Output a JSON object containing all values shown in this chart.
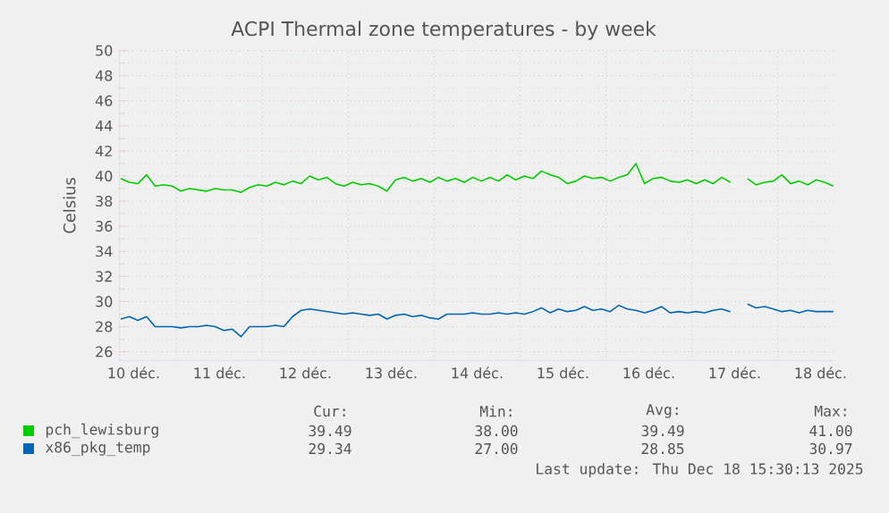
{
  "chart_data": {
    "type": "line",
    "title": "ACPI Thermal zone temperatures - by week",
    "ylabel": "Celsius",
    "x": [
      10.35,
      10.45,
      10.55,
      10.65,
      10.75,
      10.85,
      10.95,
      11.05,
      11.15,
      11.25,
      11.35,
      11.45,
      11.55,
      11.65,
      11.75,
      11.85,
      11.95,
      12.05,
      12.15,
      12.25,
      12.35,
      12.45,
      12.55,
      12.65,
      12.75,
      12.85,
      12.95,
      13.05,
      13.15,
      13.25,
      13.35,
      13.45,
      13.55,
      13.65,
      13.75,
      13.85,
      13.95,
      14.05,
      14.15,
      14.25,
      14.35,
      14.45,
      14.55,
      14.65,
      14.75,
      14.85,
      14.95,
      15.05,
      15.15,
      15.25,
      15.35,
      15.45,
      15.55,
      15.65,
      15.75,
      15.85,
      15.95,
      16.05,
      16.15,
      16.25,
      16.35,
      16.45,
      16.55,
      16.65,
      16.75,
      16.85,
      16.95,
      17.05,
      17.15,
      17.25,
      17.35,
      17.45,
      17.55,
      17.65,
      17.75,
      17.85,
      17.95,
      18.05,
      18.15,
      18.25,
      18.35,
      18.45,
      18.55,
      18.65
    ],
    "series": [
      {
        "name": "pch_lewisburg",
        "color": "#00cc00",
        "values": [
          39.8,
          39.5,
          39.4,
          40.1,
          39.2,
          39.3,
          39.2,
          38.8,
          39.0,
          38.9,
          38.8,
          39.0,
          38.9,
          38.9,
          38.7,
          39.1,
          39.3,
          39.2,
          39.5,
          39.3,
          39.6,
          39.4,
          40.0,
          39.7,
          39.9,
          39.4,
          39.2,
          39.5,
          39.3,
          39.4,
          39.2,
          38.8,
          39.7,
          39.9,
          39.6,
          39.8,
          39.5,
          39.9,
          39.6,
          39.8,
          39.5,
          39.9,
          39.6,
          39.9,
          39.6,
          40.1,
          39.7,
          40.0,
          39.8,
          40.4,
          40.1,
          39.9,
          39.4,
          39.6,
          40.0,
          39.8,
          39.9,
          39.6,
          39.9,
          40.1,
          41.0,
          39.4,
          39.8,
          39.9,
          39.6,
          39.5,
          39.7,
          39.4,
          39.7,
          39.4,
          39.9,
          39.5,
          null,
          39.8,
          39.3,
          39.5,
          39.6,
          40.1,
          39.4,
          39.6,
          39.3,
          39.7,
          39.5,
          39.2
        ]
      },
      {
        "name": "x86_pkg_temp",
        "color": "#0066b3",
        "values": [
          28.6,
          28.8,
          28.5,
          28.8,
          28.0,
          28.0,
          28.0,
          27.9,
          28.0,
          28.0,
          28.1,
          28.0,
          27.7,
          27.8,
          27.2,
          28.0,
          28.0,
          28.0,
          28.1,
          28.0,
          28.8,
          29.3,
          29.4,
          29.3,
          29.2,
          29.1,
          29.0,
          29.1,
          29.0,
          28.9,
          29.0,
          28.6,
          28.9,
          29.0,
          28.8,
          28.9,
          28.7,
          28.6,
          29.0,
          29.0,
          29.0,
          29.1,
          29.0,
          29.0,
          29.1,
          29.0,
          29.1,
          29.0,
          29.2,
          29.5,
          29.1,
          29.4,
          29.2,
          29.3,
          29.6,
          29.3,
          29.4,
          29.2,
          29.7,
          29.4,
          29.3,
          29.1,
          29.3,
          29.6,
          29.1,
          29.2,
          29.1,
          29.2,
          29.1,
          29.3,
          29.4,
          29.2,
          null,
          29.8,
          29.5,
          29.6,
          29.4,
          29.2,
          29.3,
          29.1,
          29.3,
          29.2,
          29.2,
          29.2
        ]
      }
    ],
    "xlim": [
      10.333,
      18.667
    ],
    "xticks": [
      {
        "value": 10.5,
        "label": "10 déc."
      },
      {
        "value": 11,
        "label": null
      },
      {
        "value": 11.5,
        "label": "11 déc."
      },
      {
        "value": 12,
        "label": null
      },
      {
        "value": 12.5,
        "label": "12 déc."
      },
      {
        "value": 13,
        "label": null
      },
      {
        "value": 13.5,
        "label": "13 déc."
      },
      {
        "value": 14,
        "label": null
      },
      {
        "value": 14.5,
        "label": "14 déc."
      },
      {
        "value": 15,
        "label": null
      },
      {
        "value": 15.5,
        "label": "15 déc."
      },
      {
        "value": 16,
        "label": null
      },
      {
        "value": 16.5,
        "label": "16 déc."
      },
      {
        "value": 17,
        "label": null
      },
      {
        "value": 17.5,
        "label": "17 déc."
      },
      {
        "value": 18,
        "label": null
      },
      {
        "value": 18.5,
        "label": "18 déc."
      }
    ],
    "ylim": [
      25.3,
      50
    ],
    "yticks": [
      26,
      28,
      30,
      32,
      34,
      36,
      38,
      40,
      42,
      44,
      46,
      48,
      50
    ],
    "grid": true,
    "legend": "bottom",
    "annotations": [
      "Cur:",
      "Min:",
      "Avg:",
      "Max:",
      "39.49",
      "38.00",
      "39.49",
      "41.00",
      "29.34",
      "27.00",
      "28.85",
      "30.97",
      "Last update: Thu Dec 18 15:30:13 2025"
    ]
  }
}
